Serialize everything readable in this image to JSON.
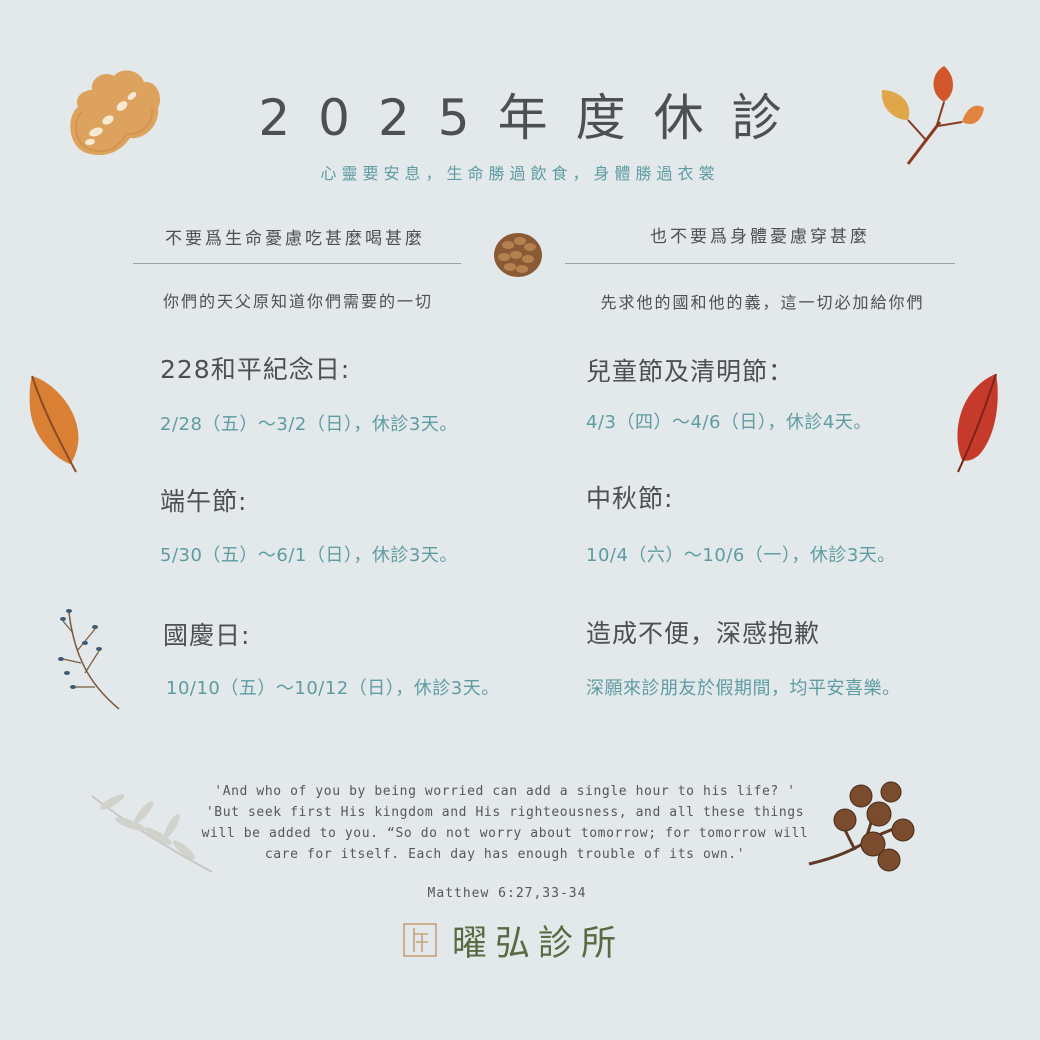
{
  "title": "2025年度休診",
  "subtitle": "心靈要安息，生命勝過飲食，身體勝過衣裳",
  "left_heading": "不要爲生命憂慮吃甚麼喝甚麼",
  "right_heading": "也不要爲身體憂慮穿甚麼",
  "left_verse": "你們的天父原知道你們需要的一切",
  "right_verse": "先求他的國和他的義，這一切必加給你們",
  "holidays": [
    {
      "name": "228和平紀念日:",
      "dates": "2/28（五）～3/2（日），休診3天。"
    },
    {
      "name": "兒童節及清明節：",
      "dates": "4/3（四）～4/6（日），休診4天。"
    },
    {
      "name": "端午節:",
      "dates": "5/30（五）～6/1（日），休診3天。"
    },
    {
      "name": "中秋節:",
      "dates": "10/4（六）～10/6（一），休診3天。"
    },
    {
      "name": "國慶日:",
      "dates": "10/10（五）～10/12（日），休診3天。"
    }
  ],
  "apology": {
    "title": "造成不便，深感抱歉",
    "text": "深願來診朋友於假期間，均平安喜樂。"
  },
  "quote_lines": [
    "'And who of you by being worried can add a single hour to his life? '",
    "'But seek first His kingdom and His righteousness, and all these things",
    "will be added to you. “So do not worry about tomorrow; for tomorrow will",
    "care for itself. Each day has enough trouble of its own.'"
  ],
  "reference": "Matthew 6:27,33-34",
  "brand": {
    "name": "曜弘診所",
    "logo_icon": "clinic-logo-icon"
  },
  "colors": {
    "background": "#e3e8ea",
    "accent": "#5e9ca3",
    "text": "#4d4f51",
    "brand": "#5a6a42"
  }
}
